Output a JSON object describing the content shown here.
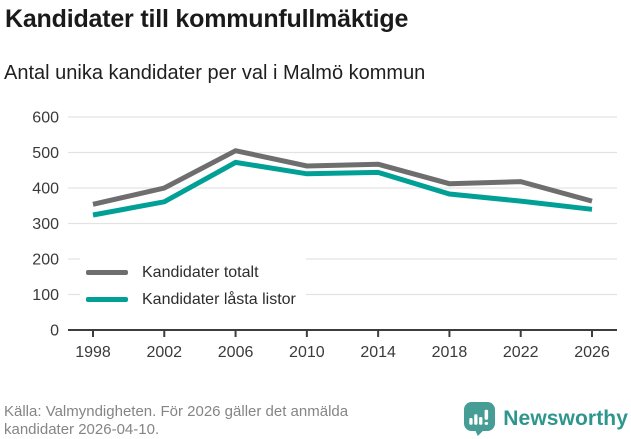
{
  "header": {
    "title": "Kandidater till kommunfullmäktige",
    "subtitle": "Antal unika kandidater per val i Malmö kommun"
  },
  "chart_data": {
    "type": "line",
    "x": [
      1998,
      2002,
      2006,
      2010,
      2014,
      2018,
      2022,
      2026
    ],
    "series": [
      {
        "name": "Kandidater totalt",
        "color": "#6e6e6e",
        "values": [
          354,
          400,
          505,
          462,
          467,
          412,
          418,
          363
        ]
      },
      {
        "name": "Kandidater låsta listor",
        "color": "#00a096",
        "values": [
          324,
          361,
          472,
          440,
          444,
          383,
          363,
          340
        ]
      }
    ],
    "ylim": [
      0,
      600
    ],
    "yticks": [
      0,
      100,
      200,
      300,
      400,
      500,
      600
    ],
    "grid": true,
    "legend_position": "inside-bottom-left"
  },
  "footer": {
    "source_line1": "Källa: Valmyndigheten. För 2026 gäller det anmälda",
    "source_line2": "kandidater 2026-04-10.",
    "brand": "Newsworthy"
  },
  "colors": {
    "series_total": "#6e6e6e",
    "series_locked": "#00a096",
    "brand_teal": "#2f968e",
    "brand_icon_teal": "#459d96",
    "grid": "#e3e3e3",
    "axis": "#3d3d3d",
    "footer_text": "#858585"
  }
}
